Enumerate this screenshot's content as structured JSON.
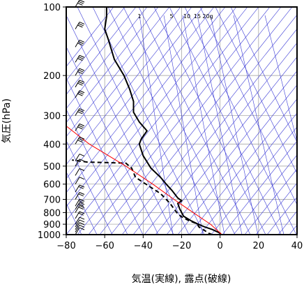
{
  "chart_data": {
    "type": "line",
    "title": "",
    "xlabel": "気温(実線), 露点(破線)",
    "ylabel": "気圧(hPa)",
    "xlim": [
      -80,
      40
    ],
    "ylim": [
      1000,
      100
    ],
    "y_scale": "log",
    "x_ticks": [
      -80,
      -60,
      -40,
      -20,
      0,
      20,
      40
    ],
    "x_tick_labels": [
      "−80",
      "−60",
      "−40",
      "−20",
      "0",
      "20",
      "40"
    ],
    "y_ticks": [
      100,
      200,
      300,
      400,
      500,
      600,
      700,
      800,
      900,
      1000
    ],
    "y_tick_labels": [
      "100",
      "200",
      "300",
      "400",
      "500",
      "600",
      "700",
      "800",
      "900",
      "1000"
    ],
    "grid": true,
    "mixing_ratio_labels": [
      "1",
      "5",
      "10",
      "15",
      "20g"
    ],
    "series": [
      {
        "style": "solid",
        "color": "#000000",
        "points": [
          [
            0.5,
            1000
          ],
          [
            0,
            985
          ],
          [
            -4,
            950
          ],
          [
            -8,
            925
          ],
          [
            -12,
            895
          ],
          [
            -15,
            870
          ],
          [
            -19,
            830
          ],
          [
            -20,
            800
          ],
          [
            -21,
            770
          ],
          [
            -22,
            730
          ],
          [
            -20,
            710
          ],
          [
            -22,
            690
          ],
          [
            -25,
            640
          ],
          [
            -28,
            600
          ],
          [
            -31,
            560
          ],
          [
            -36,
            510
          ],
          [
            -40,
            450
          ],
          [
            -42,
            400
          ],
          [
            -41,
            380
          ],
          [
            -38,
            350
          ],
          [
            -42,
            320
          ],
          [
            -45,
            290
          ],
          [
            -45,
            260
          ],
          [
            -47,
            230
          ],
          [
            -50,
            200
          ],
          [
            -55,
            170
          ],
          [
            -58,
            140
          ],
          [
            -60,
            125
          ],
          [
            -59,
            110
          ],
          [
            -59,
            100
          ]
        ]
      },
      {
        "style": "dashed",
        "color": "#000000",
        "points": [
          [
            -4,
            1000
          ],
          [
            -6,
            985
          ],
          [
            -8,
            960
          ],
          [
            -11,
            925
          ],
          [
            -12,
            895
          ],
          [
            -16,
            870
          ],
          [
            -20,
            835
          ],
          [
            -22,
            810
          ],
          [
            -24,
            770
          ],
          [
            -26,
            730
          ],
          [
            -28,
            700
          ],
          [
            -31,
            660
          ],
          [
            -36,
            620
          ],
          [
            -44,
            560
          ],
          [
            -46,
            510
          ],
          [
            -49,
            485
          ],
          [
            -69,
            480
          ],
          [
            -77,
            470
          ]
        ]
      },
      {
        "style": "solid",
        "color": "#ff0000",
        "points": [
          [
            1,
            1000
          ],
          [
            -5,
            900
          ],
          [
            -14,
            800
          ],
          [
            -24,
            700
          ],
          [
            -35,
            600
          ],
          [
            -49,
            500
          ],
          [
            -68,
            400
          ],
          [
            -87,
            300
          ]
        ]
      }
    ],
    "wind_barbs": [
      {
        "pressure": 1000,
        "barbs": 1
      },
      {
        "pressure": 975,
        "barbs": 1
      },
      {
        "pressure": 950,
        "barbs": 1
      },
      {
        "pressure": 925,
        "barbs": 1
      },
      {
        "pressure": 900,
        "barbs": 1
      },
      {
        "pressure": 850,
        "barbs": 2
      },
      {
        "pressure": 800,
        "barbs": 2
      },
      {
        "pressure": 775,
        "barbs": 2
      },
      {
        "pressure": 750,
        "barbs": 2
      },
      {
        "pressure": 700,
        "barbs": 2
      },
      {
        "pressure": 650,
        "barbs": 2
      },
      {
        "pressure": 600,
        "barbs": 1
      },
      {
        "pressure": 550,
        "barbs": 1
      },
      {
        "pressure": 500,
        "barbs": 1
      },
      {
        "pressure": 475,
        "barbs": 1
      },
      {
        "pressure": 400,
        "barbs": 3
      },
      {
        "pressure": 350,
        "barbs": 3
      },
      {
        "pressure": 300,
        "barbs": 3
      },
      {
        "pressure": 250,
        "barbs": 3
      },
      {
        "pressure": 225,
        "barbs": 3
      },
      {
        "pressure": 200,
        "barbs": 3
      },
      {
        "pressure": 175,
        "barbs": 3
      },
      {
        "pressure": 150,
        "barbs": 3
      },
      {
        "pressure": 125,
        "barbs": 3
      },
      {
        "pressure": 100,
        "barbs": 3
      }
    ]
  }
}
